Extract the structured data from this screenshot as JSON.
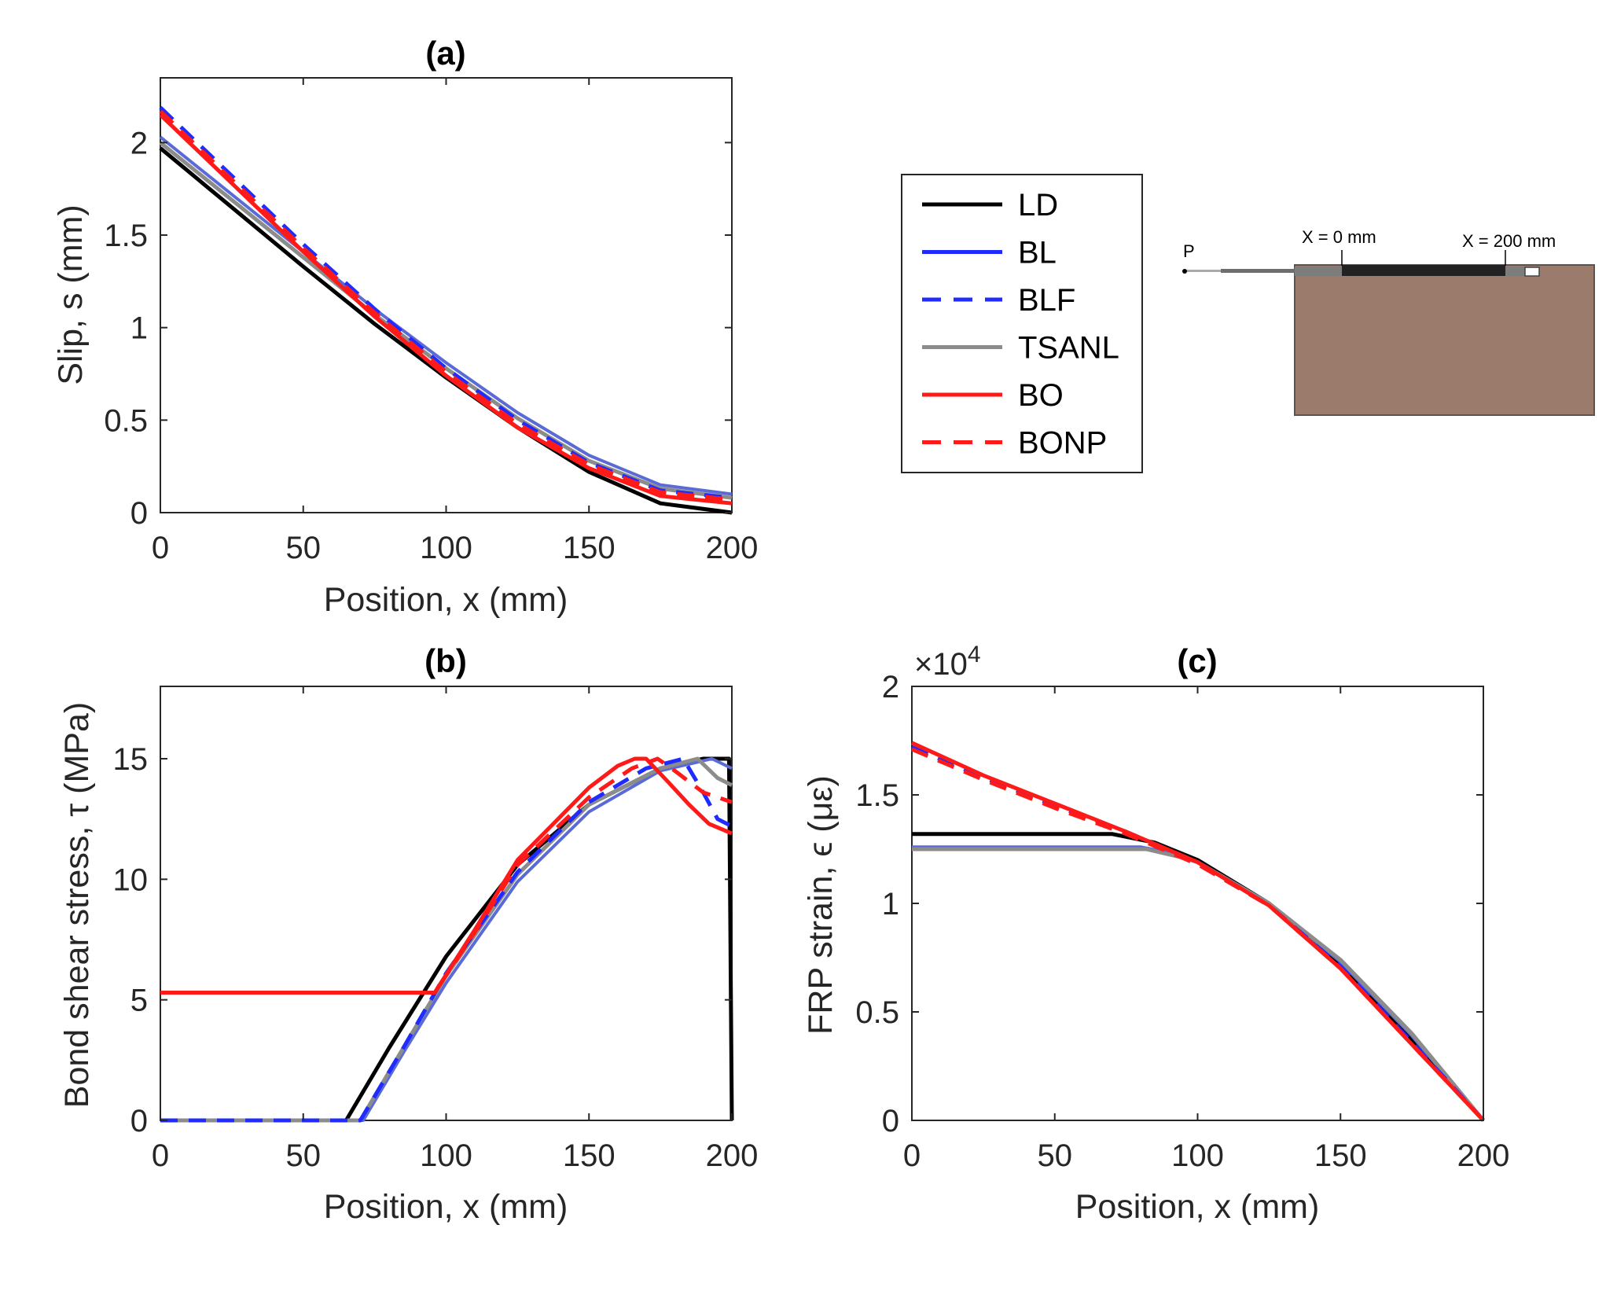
{
  "colors": {
    "LD": "#000000",
    "BL": "#1f2bff",
    "BLF": "#1f2bff",
    "TSANL": "#8c8c8c",
    "BO": "#ff1a1a",
    "BONP": "#ff1a1a",
    "BL_curve": "#5b6bd6",
    "concrete": "#9b7b6b"
  },
  "legend": {
    "entries": [
      {
        "label": "LD",
        "style": "solid"
      },
      {
        "label": "BL",
        "style": "solid"
      },
      {
        "label": "BLF",
        "style": "dashed"
      },
      {
        "label": "TSANL",
        "style": "solid"
      },
      {
        "label": "BO",
        "style": "solid"
      },
      {
        "label": "BONP",
        "style": "dashed"
      }
    ]
  },
  "diagram": {
    "load_label": "P",
    "start_label": "X = 0 mm",
    "end_label": "X = 200 mm"
  },
  "chart_data": [
    {
      "id": "a",
      "type": "line",
      "title": "(a)",
      "xlabel": "Position,  x (mm)",
      "ylabel": "Slip,  s (mm)",
      "xlim": [
        0,
        200
      ],
      "ylim": [
        0,
        2.35
      ],
      "xticks": [
        0,
        50,
        100,
        150,
        200
      ],
      "yticks": [
        0,
        0.5,
        1,
        1.5,
        2
      ],
      "ytick_labels": [
        "0",
        "0.5",
        "1",
        "1.5",
        "2"
      ],
      "series": [
        {
          "name": "LD",
          "points": [
            [
              0,
              1.97
            ],
            [
              25,
              1.65
            ],
            [
              50,
              1.33
            ],
            [
              75,
              1.02
            ],
            [
              100,
              0.73
            ],
            [
              125,
              0.46
            ],
            [
              150,
              0.22
            ],
            [
              175,
              0.05
            ],
            [
              200,
              0.0
            ]
          ]
        },
        {
          "name": "BL",
          "points": [
            [
              0,
              2.03
            ],
            [
              25,
              1.72
            ],
            [
              50,
              1.41
            ],
            [
              75,
              1.1
            ],
            [
              100,
              0.81
            ],
            [
              125,
              0.54
            ],
            [
              150,
              0.31
            ],
            [
              175,
              0.15
            ],
            [
              200,
              0.1
            ]
          ]
        },
        {
          "name": "BLF",
          "points": [
            [
              0,
              2.19
            ],
            [
              25,
              1.82
            ],
            [
              50,
              1.45
            ],
            [
              75,
              1.1
            ],
            [
              100,
              0.78
            ],
            [
              125,
              0.5
            ],
            [
              150,
              0.27
            ],
            [
              175,
              0.12
            ],
            [
              200,
              0.08
            ]
          ]
        },
        {
          "name": "TSANL",
          "points": [
            [
              0,
              2.0
            ],
            [
              25,
              1.69
            ],
            [
              50,
              1.38
            ],
            [
              75,
              1.07
            ],
            [
              100,
              0.78
            ],
            [
              125,
              0.51
            ],
            [
              150,
              0.28
            ],
            [
              175,
              0.13
            ],
            [
              200,
              0.08
            ]
          ]
        },
        {
          "name": "BO",
          "points": [
            [
              0,
              2.15
            ],
            [
              25,
              1.78
            ],
            [
              50,
              1.41
            ],
            [
              75,
              1.06
            ],
            [
              100,
              0.74
            ],
            [
              125,
              0.46
            ],
            [
              150,
              0.24
            ],
            [
              175,
              0.09
            ],
            [
              200,
              0.05
            ]
          ]
        },
        {
          "name": "BONP",
          "points": [
            [
              0,
              2.17
            ],
            [
              25,
              1.8
            ],
            [
              50,
              1.43
            ],
            [
              75,
              1.08
            ],
            [
              100,
              0.76
            ],
            [
              125,
              0.48
            ],
            [
              150,
              0.26
            ],
            [
              175,
              0.11
            ],
            [
              200,
              0.07
            ]
          ]
        }
      ]
    },
    {
      "id": "b",
      "type": "line",
      "title": "(b)",
      "xlabel": "Position, x (mm)",
      "ylabel": "Bond shear stress, τ (MPa)",
      "xlim": [
        0,
        200
      ],
      "ylim": [
        0,
        18
      ],
      "xticks": [
        0,
        50,
        100,
        150,
        200
      ],
      "yticks": [
        0,
        5,
        10,
        15
      ],
      "ytick_labels": [
        "0",
        "5",
        "10",
        "15"
      ],
      "series": [
        {
          "name": "LD",
          "points": [
            [
              0,
              0
            ],
            [
              65,
              0
            ],
            [
              80,
              3.0
            ],
            [
              100,
              6.8
            ],
            [
              125,
              10.6
            ],
            [
              150,
              13.1
            ],
            [
              175,
              14.6
            ],
            [
              190,
              15.0
            ],
            [
              199,
              15.0
            ],
            [
              200,
              0
            ]
          ]
        },
        {
          "name": "BL",
          "points": [
            [
              0,
              0
            ],
            [
              71,
              0
            ],
            [
              85,
              2.8
            ],
            [
              100,
              5.7
            ],
            [
              125,
              9.9
            ],
            [
              150,
              12.8
            ],
            [
              175,
              14.5
            ],
            [
              193,
              15.0
            ],
            [
              200,
              14.6
            ]
          ]
        },
        {
          "name": "BLF",
          "points": [
            [
              0,
              0
            ],
            [
              70,
              0
            ],
            [
              85,
              3.0
            ],
            [
              100,
              6.1
            ],
            [
              125,
              10.3
            ],
            [
              150,
              13.2
            ],
            [
              170,
              14.6
            ],
            [
              183,
              15.0
            ],
            [
              190,
              13.6
            ],
            [
              195,
              12.5
            ],
            [
              200,
              12.2
            ]
          ]
        },
        {
          "name": "TSANL",
          "points": [
            [
              0,
              0
            ],
            [
              70,
              0
            ],
            [
              85,
              3.0
            ],
            [
              100,
              6.0
            ],
            [
              125,
              10.2
            ],
            [
              150,
              13.1
            ],
            [
              175,
              14.6
            ],
            [
              188,
              15.0
            ],
            [
              195,
              14.2
            ],
            [
              200,
              13.9
            ]
          ]
        },
        {
          "name": "BO",
          "points": [
            [
              0,
              5.3
            ],
            [
              96,
              5.3
            ],
            [
              110,
              7.9
            ],
            [
              125,
              10.8
            ],
            [
              150,
              13.8
            ],
            [
              160,
              14.7
            ],
            [
              166,
              15.0
            ],
            [
              170,
              15.0
            ],
            [
              178,
              14.0
            ],
            [
              185,
              13.1
            ],
            [
              192,
              12.3
            ],
            [
              200,
              11.9
            ]
          ]
        },
        {
          "name": "BONP",
          "points": [
            [
              0,
              5.3
            ],
            [
              96,
              5.3
            ],
            [
              110,
              7.8
            ],
            [
              125,
              10.6
            ],
            [
              150,
              13.4
            ],
            [
              165,
              14.6
            ],
            [
              174,
              15.0
            ],
            [
              180,
              14.5
            ],
            [
              190,
              13.6
            ],
            [
              200,
              13.2
            ]
          ]
        }
      ]
    },
    {
      "id": "c",
      "type": "line",
      "title": "(c)",
      "xlabel": "Position, x (mm)",
      "ylabel": "FRP strain, ϵ (με)",
      "exponent_label": "×10",
      "exponent_power": "4",
      "xlim": [
        0,
        200
      ],
      "ylim": [
        0,
        2.0
      ],
      "xticks": [
        0,
        50,
        100,
        150,
        200
      ],
      "yticks": [
        0,
        0.5,
        1,
        1.5,
        2
      ],
      "ytick_labels": [
        "0",
        "0.5",
        "1",
        "1.5",
        "2"
      ],
      "series": [
        {
          "name": "LD",
          "points": [
            [
              0,
              1.32
            ],
            [
              70,
              1.32
            ],
            [
              85,
              1.28
            ],
            [
              100,
              1.2
            ],
            [
              125,
              1.0
            ],
            [
              150,
              0.72
            ],
            [
              175,
              0.37
            ],
            [
              200,
              0.0
            ]
          ]
        },
        {
          "name": "BL",
          "points": [
            [
              0,
              1.26
            ],
            [
              80,
              1.26
            ],
            [
              92,
              1.23
            ],
            [
              100,
              1.19
            ],
            [
              125,
              1.0
            ],
            [
              150,
              0.73
            ],
            [
              175,
              0.39
            ],
            [
              200,
              0.0
            ]
          ]
        },
        {
          "name": "BLF",
          "points": [
            [
              0,
              1.72
            ],
            [
              25,
              1.58
            ],
            [
              50,
              1.45
            ],
            [
              75,
              1.33
            ],
            [
              100,
              1.19
            ],
            [
              125,
              0.99
            ],
            [
              150,
              0.71
            ],
            [
              175,
              0.36
            ],
            [
              200,
              0.0
            ]
          ]
        },
        {
          "name": "TSANL",
          "points": [
            [
              0,
              1.25
            ],
            [
              82,
              1.25
            ],
            [
              95,
              1.21
            ],
            [
              100,
              1.19
            ],
            [
              125,
              1.0
            ],
            [
              150,
              0.74
            ],
            [
              175,
              0.4
            ],
            [
              200,
              0.0
            ]
          ]
        },
        {
          "name": "BO",
          "points": [
            [
              0,
              1.74
            ],
            [
              25,
              1.59
            ],
            [
              50,
              1.46
            ],
            [
              75,
              1.33
            ],
            [
              100,
              1.19
            ],
            [
              125,
              0.99
            ],
            [
              150,
              0.7
            ],
            [
              175,
              0.35
            ],
            [
              200,
              0.0
            ]
          ]
        },
        {
          "name": "BONP",
          "points": [
            [
              0,
              1.71
            ],
            [
              25,
              1.57
            ],
            [
              50,
              1.44
            ],
            [
              75,
              1.32
            ],
            [
              100,
              1.18
            ],
            [
              125,
              0.99
            ],
            [
              150,
              0.7
            ],
            [
              175,
              0.35
            ],
            [
              200,
              0.0
            ]
          ]
        }
      ]
    }
  ]
}
